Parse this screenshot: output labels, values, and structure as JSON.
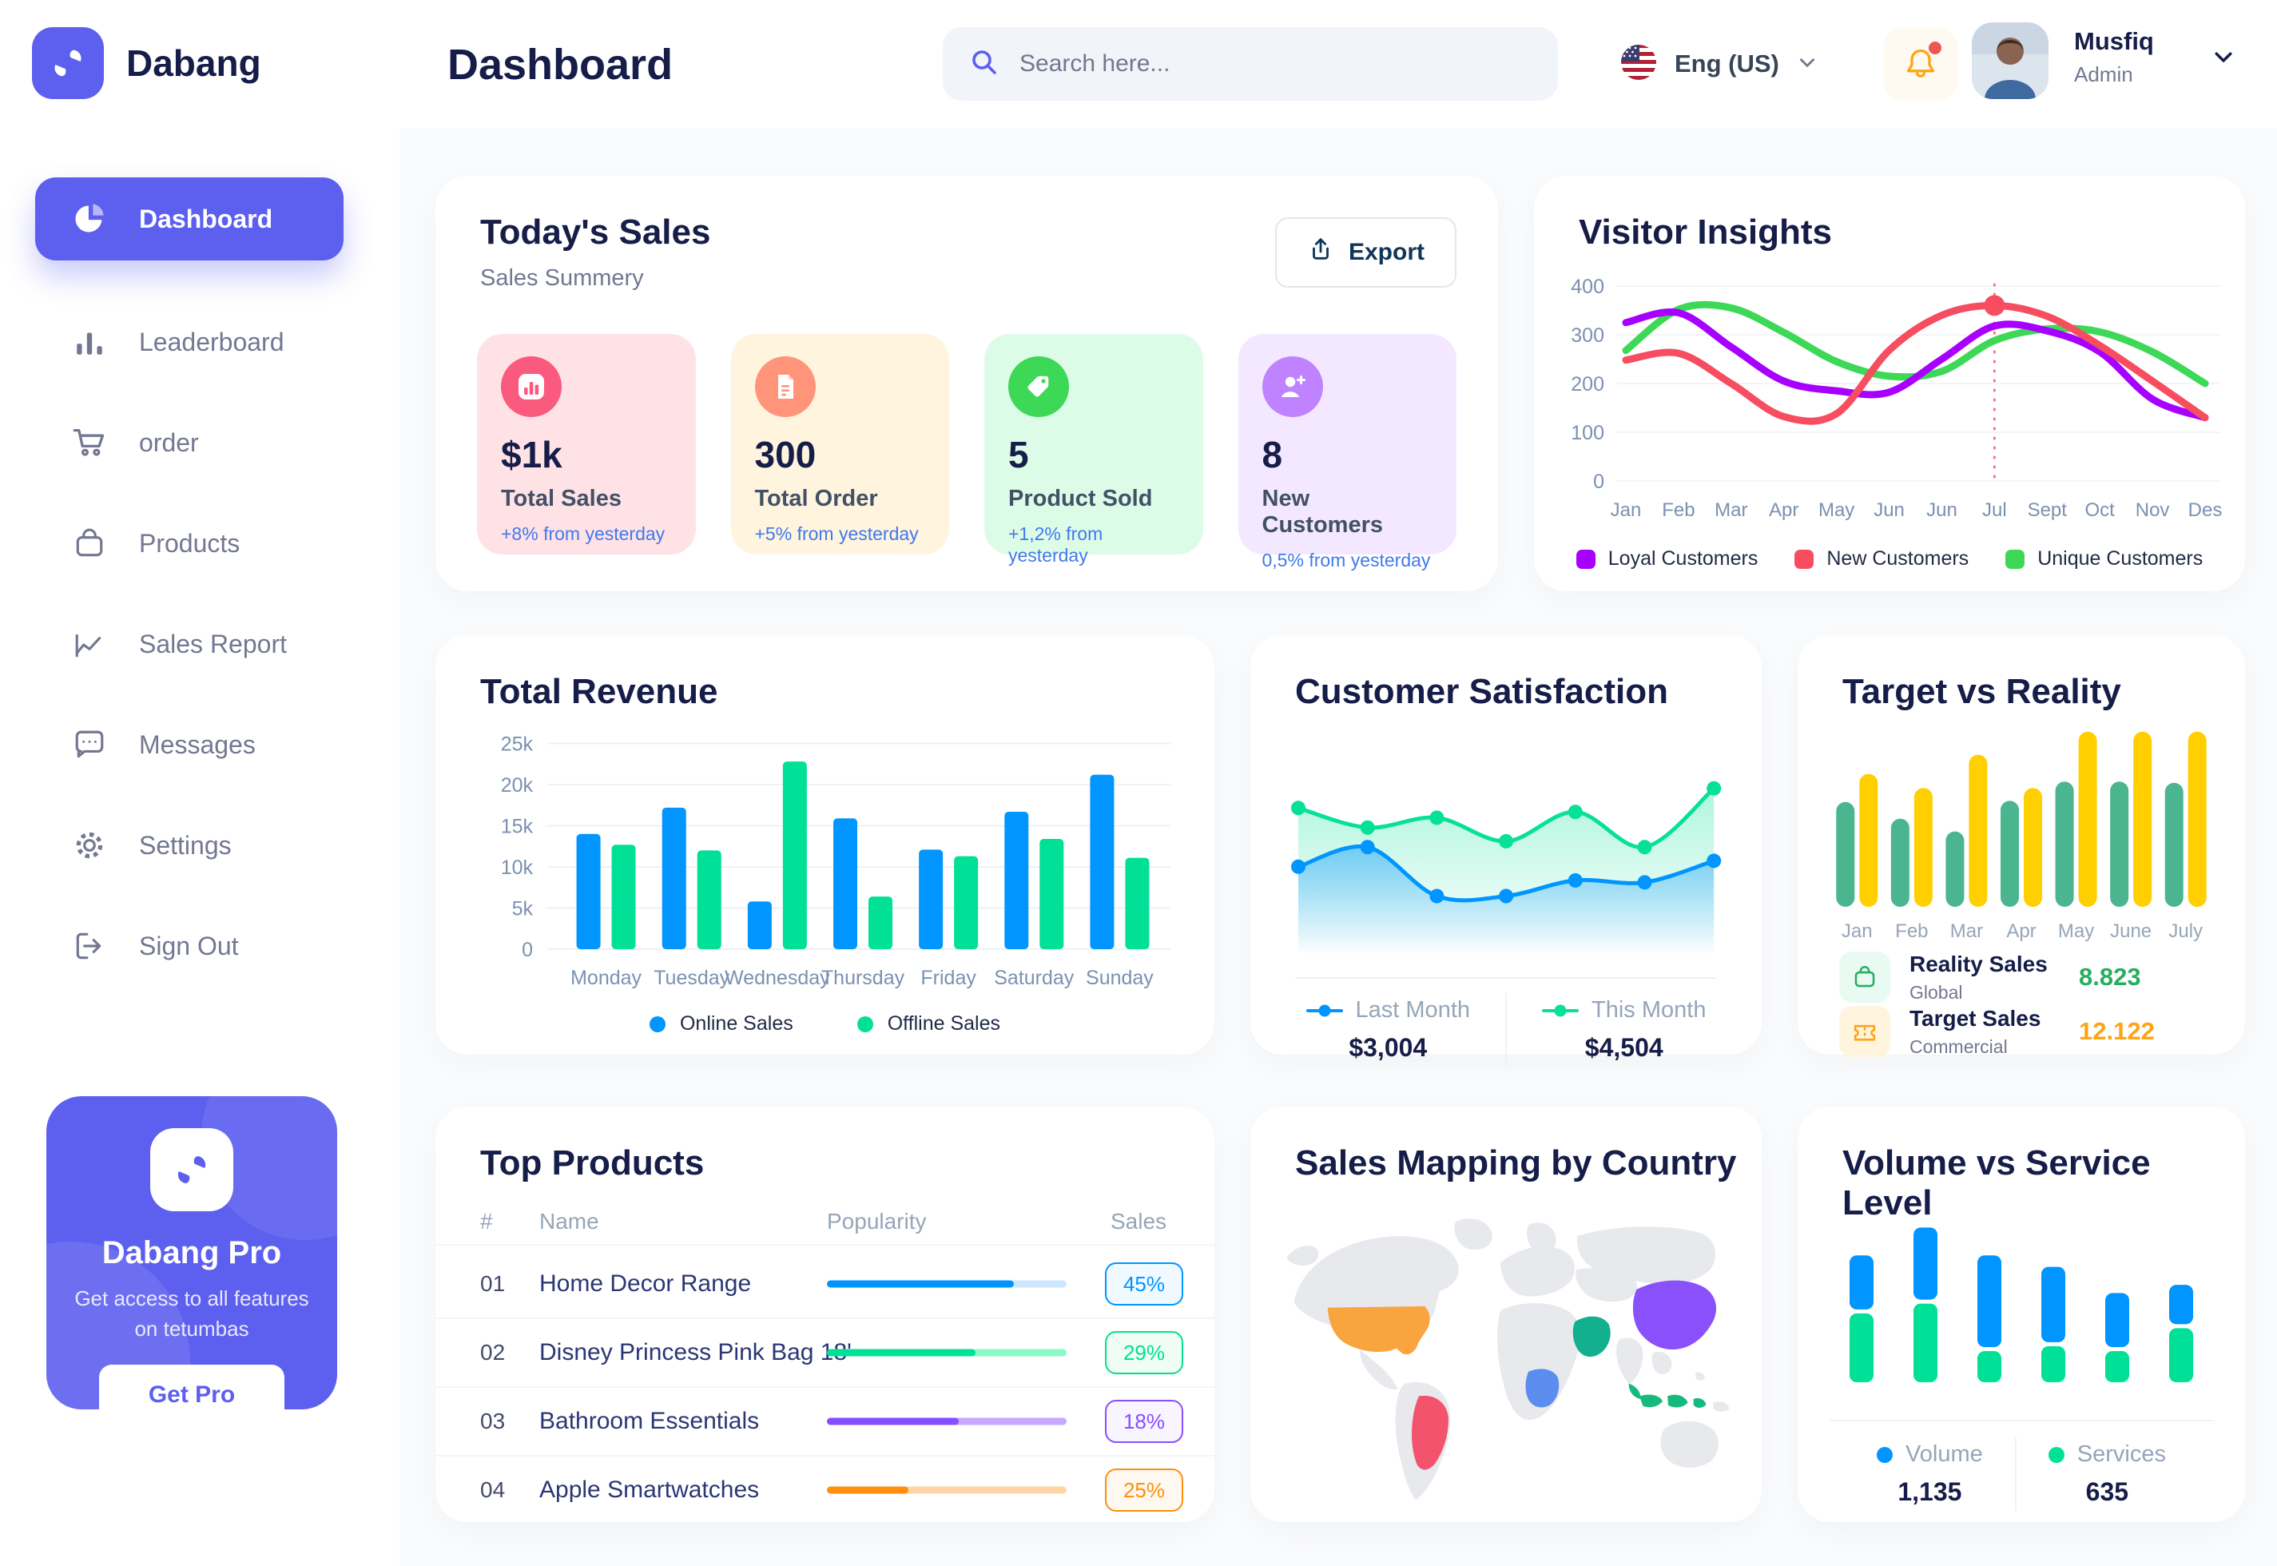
{
  "app": {
    "brand": "Dabang",
    "title": "Dashboard",
    "search_placeholder": "Search here...",
    "language": "Eng (US)",
    "user_name": "Musfiq",
    "user_role": "Admin"
  },
  "sidebar": {
    "items": [
      {
        "id": "dashboard",
        "label": "Dashboard",
        "active": true
      },
      {
        "id": "leaderboard",
        "label": "Leaderboard",
        "active": false
      },
      {
        "id": "order",
        "label": "order",
        "active": false
      },
      {
        "id": "products",
        "label": "Products",
        "active": false
      },
      {
        "id": "sales-report",
        "label": "Sales Report",
        "active": false
      },
      {
        "id": "messages",
        "label": "Messages",
        "active": false
      },
      {
        "id": "settings",
        "label": "Settings",
        "active": false
      },
      {
        "id": "sign-out",
        "label": "Sign Out",
        "active": false
      }
    ],
    "pro": {
      "title": "Dabang Pro",
      "description": "Get access to all features on tetumbas",
      "button": "Get Pro"
    }
  },
  "today_sales": {
    "title": "Today's Sales",
    "subtitle": "Sales Summery",
    "export_label": "Export",
    "stats": [
      {
        "value": "$1k",
        "label": "Total Sales",
        "delta": "+8% from yesterday",
        "bg": "#FFE2E5",
        "icon_bg": "#FA5A7D",
        "icon": "bar-chart"
      },
      {
        "value": "300",
        "label": "Total Order",
        "delta": "+5% from yesterday",
        "bg": "#FFF4DE",
        "icon_bg": "#FF947A",
        "icon": "file-list"
      },
      {
        "value": "5",
        "label": "Product Sold",
        "delta": "+1,2% from yesterday",
        "bg": "#DCFCE7",
        "icon_bg": "#3CD856",
        "icon": "tag"
      },
      {
        "value": "8",
        "label": "New Customers",
        "delta": "0,5% from yesterday",
        "bg": "#F3E8FF",
        "icon_bg": "#BF83FF",
        "icon": "user-plus"
      }
    ]
  },
  "top_products": {
    "title": "Top Products",
    "columns": [
      "#",
      "Name",
      "Popularity",
      "Sales"
    ],
    "rows": [
      {
        "num": "01",
        "name": "Home Decor Range",
        "popularity": 78,
        "sales": "45%",
        "color": "#0095FF",
        "track": "#CDE7FF",
        "badge_bg": "#F0F9FF"
      },
      {
        "num": "02",
        "name": "Disney Princess Pink Bag 18'",
        "popularity": 62,
        "sales": "29%",
        "color": "#00E096",
        "track": "#8CFAC7",
        "badge_bg": "#F0FDF4"
      },
      {
        "num": "03",
        "name": "Bathroom Essentials",
        "popularity": 55,
        "sales": "18%",
        "color": "#884DFF",
        "track": "#C5A8FF",
        "badge_bg": "#F8F5FF"
      },
      {
        "num": "04",
        "name": "Apple Smartwatches",
        "popularity": 34,
        "sales": "25%",
        "color": "#FF8F0D",
        "track": "#FFD5A5",
        "badge_bg": "#FFF8F0"
      }
    ]
  },
  "sales_mapping": {
    "title": "Sales Mapping by Country",
    "countries": [
      {
        "id": "usa",
        "name": "United States",
        "color": "#F9A43F"
      },
      {
        "id": "brazil",
        "name": "Brazil",
        "color": "#F4536E"
      },
      {
        "id": "saudi-arabia",
        "name": "Saudi Arabia",
        "color": "#12B08F"
      },
      {
        "id": "dr-congo",
        "name": "DR Congo",
        "color": "#5B8DEF"
      },
      {
        "id": "china",
        "name": "China",
        "color": "#8950FC"
      },
      {
        "id": "indonesia",
        "name": "Indonesia",
        "color": "#18B97F"
      }
    ]
  },
  "chart_data": [
    {
      "id": "visitor_insights",
      "type": "line",
      "title": "Visitor Insights",
      "x": [
        "Jan",
        "Feb",
        "Mar",
        "Apr",
        "May",
        "Jun",
        "Jun",
        "Jul",
        "Sept",
        "Oct",
        "Nov",
        "Des"
      ],
      "ylim": [
        0,
        400
      ],
      "yticks": [
        0,
        100,
        200,
        300,
        400
      ],
      "grid": true,
      "legend_position": "bottom",
      "series": [
        {
          "name": "Loyal Customers",
          "color": "#A700FF",
          "values": [
            325,
            345,
            275,
            205,
            185,
            182,
            250,
            318,
            308,
            265,
            168,
            130
          ]
        },
        {
          "name": "New Customers",
          "color": "#F64E60",
          "values": [
            248,
            262,
            200,
            132,
            138,
            268,
            340,
            360,
            338,
            278,
            205,
            130
          ]
        },
        {
          "name": "Unique Customers",
          "color": "#3CD856",
          "values": [
            268,
            352,
            355,
            305,
            245,
            215,
            225,
            288,
            312,
            306,
            265,
            200
          ]
        }
      ],
      "highlight": {
        "x_index": 7,
        "x_label": "Jul",
        "series": "New Customers",
        "value": 360
      }
    },
    {
      "id": "total_revenue",
      "type": "bar",
      "title": "Total Revenue",
      "categories": [
        "Monday",
        "Tuesday",
        "Wednesday",
        "Thursday",
        "Friday",
        "Saturday",
        "Sunday"
      ],
      "ylabel_ticks": [
        "0",
        "5k",
        "10k",
        "15k",
        "20k",
        "25k"
      ],
      "yticks_k": [
        0,
        5,
        10,
        15,
        20,
        25
      ],
      "ylim_k": [
        0,
        25
      ],
      "grid": true,
      "legend_position": "bottom",
      "series": [
        {
          "name": "Online Sales",
          "color": "#0095FF",
          "values_k": [
            14,
            17.2,
            5.8,
            15.9,
            12.1,
            16.7,
            21.2
          ]
        },
        {
          "name": "Offline Sales",
          "color": "#00E096",
          "values_k": [
            12.7,
            12,
            22.8,
            6.4,
            11.3,
            13.4,
            11.1
          ]
        }
      ]
    },
    {
      "id": "customer_satisfaction",
      "type": "area",
      "title": "Customer Satisfaction",
      "series": [
        {
          "name": "Last Month",
          "color": "#0095FF",
          "total": "$3,004",
          "values": [
            45,
            55,
            30,
            30,
            38,
            37,
            48
          ]
        },
        {
          "name": "This Month",
          "color": "#07E098",
          "total": "$4,504",
          "values": [
            75,
            65,
            70,
            58,
            73,
            55,
            85
          ]
        }
      ]
    },
    {
      "id": "target_vs_reality",
      "type": "bar",
      "title": "Target vs Reality",
      "categories": [
        "Jan",
        "Feb",
        "Mar",
        "Apr",
        "May",
        "June",
        "July"
      ],
      "series": [
        {
          "name": "Reality Sales",
          "subtitle": "Global",
          "color": "#4AB58E",
          "value_label": "8.823",
          "value_color": "#27AE60",
          "values": [
            8.2,
            6.9,
            5.9,
            8.3,
            9.8,
            9.8,
            9.7
          ]
        },
        {
          "name": "Target Sales",
          "subtitle": "Commercial",
          "color": "#FFCF00",
          "value_label": "12.122",
          "value_color": "#FFA412",
          "values": [
            10.4,
            9.3,
            11.9,
            9.3,
            13.7,
            13.7,
            13.7
          ]
        }
      ]
    },
    {
      "id": "volume_service",
      "type": "stacked-bar",
      "title": "Volume vs Service Level",
      "series": [
        {
          "name": "Volume",
          "color": "#0095FF",
          "total": "1,135",
          "values": [
            33,
            44,
            56,
            46,
            33,
            24
          ]
        },
        {
          "name": "Services",
          "color": "#00E096",
          "total": "635",
          "values": [
            42,
            48,
            19,
            22,
            19,
            33
          ]
        }
      ]
    }
  ]
}
